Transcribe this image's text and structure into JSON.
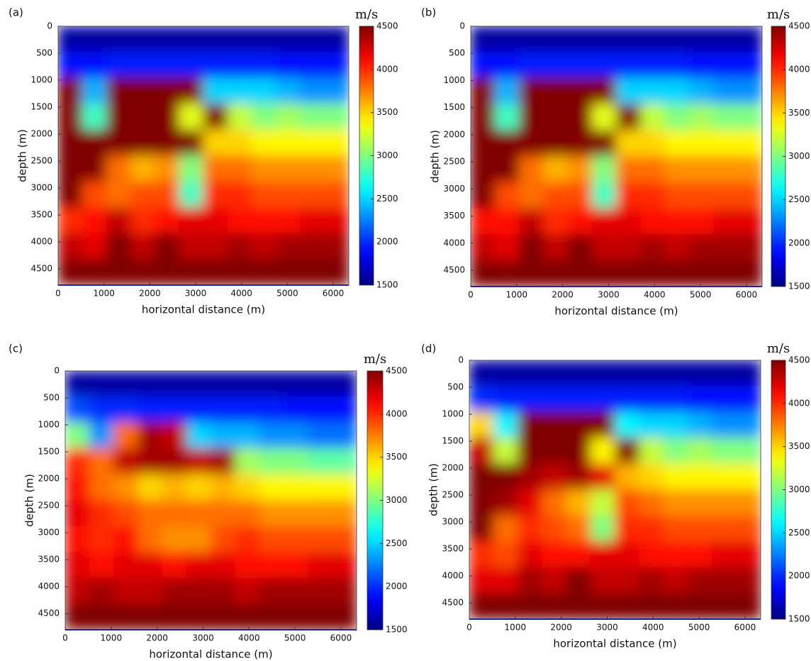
{
  "chart_data": [
    {
      "type": "heatmap",
      "panel_label": "(a)",
      "x_label": "horizontal distance (m)",
      "y_label": "depth (m)",
      "colorbar_label": "m/s",
      "colormap": "jet",
      "xlim": [
        0,
        6340
      ],
      "ylim": [
        0,
        4800
      ],
      "y_inverted": true,
      "clim": [
        1500,
        4500
      ],
      "xticks": [
        0,
        1000,
        2000,
        3000,
        4000,
        5000,
        6000
      ],
      "yticks": [
        0,
        500,
        1000,
        1500,
        2000,
        2500,
        3000,
        3500,
        4000,
        4500
      ],
      "cticks": [
        1500,
        2000,
        2500,
        3000,
        3500,
        4000,
        4500
      ],
      "z": [
        [
          1600,
          1600,
          1600,
          1600,
          1600,
          1600,
          1600,
          1600,
          1600,
          1600,
          1600,
          1600
        ],
        [
          1900,
          1900,
          1950,
          1950,
          1950,
          1950,
          1950,
          1950,
          1950,
          1900,
          1900,
          1900
        ],
        [
          4500,
          2400,
          4500,
          4500,
          4500,
          4500,
          2500,
          2500,
          2500,
          2400,
          2300,
          2300
        ],
        [
          4500,
          2800,
          4500,
          4500,
          4500,
          3300,
          4500,
          3200,
          3000,
          3100,
          3000,
          3000
        ],
        [
          4500,
          4500,
          4500,
          4500,
          4500,
          4500,
          3500,
          3500,
          3400,
          3400,
          3400,
          3400
        ],
        [
          4500,
          4500,
          3800,
          3600,
          3700,
          3000,
          3800,
          3800,
          3700,
          3700,
          3700,
          3700
        ],
        [
          4500,
          3900,
          3800,
          3900,
          3900,
          2800,
          4000,
          4000,
          3900,
          3900,
          3900,
          3900
        ],
        [
          4000,
          4100,
          4300,
          4000,
          4100,
          4200,
          4200,
          4100,
          4100,
          4100,
          4200,
          4200
        ],
        [
          4300,
          4200,
          4500,
          4300,
          4500,
          4300,
          4300,
          4400,
          4300,
          4400,
          4400,
          4400
        ],
        [
          4500,
          4500,
          4500,
          4500,
          4500,
          4500,
          4500,
          4500,
          4500,
          4500,
          4500,
          4500
        ]
      ]
    },
    {
      "type": "heatmap",
      "panel_label": "(b)",
      "x_label": "horizontal distance (m)",
      "y_label": "depth (m)",
      "colorbar_label": "m/s",
      "colormap": "jet",
      "xlim": [
        0,
        6340
      ],
      "ylim": [
        0,
        4800
      ],
      "y_inverted": true,
      "clim": [
        1500,
        4500
      ],
      "xticks": [
        0,
        1000,
        2000,
        3000,
        4000,
        5000,
        6000
      ],
      "yticks": [
        0,
        500,
        1000,
        1500,
        2000,
        2500,
        3000,
        3500,
        4000,
        4500
      ],
      "cticks": [
        1500,
        2000,
        2500,
        3000,
        3500,
        4000,
        4500
      ],
      "z": [
        [
          1600,
          1600,
          1600,
          1600,
          1600,
          1600,
          1600,
          1600,
          1600,
          1600,
          1600,
          1600
        ],
        [
          1900,
          1900,
          1950,
          1950,
          1950,
          1950,
          1950,
          1950,
          1950,
          1900,
          1900,
          1900
        ],
        [
          4500,
          2400,
          4500,
          4500,
          4500,
          4500,
          2500,
          2500,
          2500,
          2400,
          2300,
          2300
        ],
        [
          4500,
          2800,
          4500,
          4500,
          4500,
          3300,
          4500,
          3200,
          3000,
          3100,
          3000,
          3000
        ],
        [
          4500,
          4500,
          4500,
          4500,
          4500,
          4500,
          3500,
          3500,
          3400,
          3400,
          3400,
          3400
        ],
        [
          4500,
          4500,
          3800,
          3600,
          3700,
          3000,
          3800,
          3800,
          3700,
          3700,
          3700,
          3700
        ],
        [
          4500,
          3900,
          3800,
          3900,
          3900,
          2800,
          4000,
          4000,
          3900,
          3900,
          3900,
          3900
        ],
        [
          4100,
          4100,
          4300,
          4000,
          4100,
          4200,
          4200,
          4100,
          4100,
          4100,
          4200,
          4200
        ],
        [
          4300,
          4200,
          4500,
          4300,
          4500,
          4300,
          4300,
          4400,
          4300,
          4400,
          4400,
          4400
        ],
        [
          4500,
          4500,
          4500,
          4500,
          4500,
          4500,
          4500,
          4500,
          4500,
          4500,
          4500,
          4500
        ]
      ]
    },
    {
      "type": "heatmap",
      "panel_label": "(c)",
      "x_label": "horizontal distance (m)",
      "y_label": "depth (m)",
      "colorbar_label": "m/s",
      "colormap": "jet",
      "xlim": [
        0,
        6340
      ],
      "ylim": [
        0,
        4800
      ],
      "y_inverted": true,
      "clim": [
        1500,
        4500
      ],
      "xticks": [
        0,
        1000,
        2000,
        3000,
        4000,
        5000,
        6000
      ],
      "yticks": [
        0,
        500,
        1000,
        1500,
        2000,
        2500,
        3000,
        3500,
        4000,
        4500
      ],
      "cticks": [
        1500,
        2000,
        2500,
        3000,
        3500,
        4000,
        4500
      ],
      "z": [
        [
          1600,
          1600,
          1600,
          1600,
          1600,
          1600,
          1600,
          1600,
          1600,
          1600,
          1600,
          1600
        ],
        [
          2100,
          2000,
          2000,
          1950,
          1950,
          1950,
          1950,
          1950,
          1950,
          1900,
          1900,
          1900
        ],
        [
          3000,
          2300,
          3800,
          4400,
          4300,
          2500,
          2400,
          2400,
          2300,
          2300,
          2200,
          2200
        ],
        [
          4000,
          3800,
          4300,
          4400,
          4400,
          4300,
          4400,
          3100,
          3000,
          3000,
          2900,
          2900
        ],
        [
          4100,
          3800,
          3700,
          3500,
          3600,
          3500,
          3600,
          3500,
          3400,
          3400,
          3400,
          3400
        ],
        [
          4200,
          4000,
          3900,
          3800,
          3800,
          3800,
          3800,
          3800,
          3700,
          3700,
          3700,
          3700
        ],
        [
          4100,
          4000,
          4100,
          3800,
          3700,
          3700,
          3900,
          4000,
          3900,
          3900,
          3900,
          3900
        ],
        [
          4200,
          4100,
          4200,
          4200,
          4100,
          4200,
          4200,
          4100,
          4100,
          4100,
          4200,
          4200
        ],
        [
          4300,
          4400,
          4300,
          4300,
          4400,
          4400,
          4400,
          4300,
          4400,
          4400,
          4400,
          4400
        ],
        [
          4500,
          4500,
          4500,
          4500,
          4500,
          4500,
          4500,
          4500,
          4500,
          4500,
          4500,
          4500
        ]
      ]
    },
    {
      "type": "heatmap",
      "panel_label": "(d)",
      "x_label": "horizontal distance (m)",
      "y_label": "depth (m)",
      "colorbar_label": "m/s",
      "colormap": "jet",
      "xlim": [
        0,
        6340
      ],
      "ylim": [
        0,
        4800
      ],
      "y_inverted": true,
      "clim": [
        1500,
        4500
      ],
      "xticks": [
        0,
        1000,
        2000,
        3000,
        4000,
        5000,
        6000
      ],
      "yticks": [
        0,
        500,
        1000,
        1500,
        2000,
        2500,
        3000,
        3500,
        4000,
        4500
      ],
      "cticks": [
        1500,
        2000,
        2500,
        3000,
        3500,
        4000,
        4500
      ],
      "z": [
        [
          1600,
          1600,
          1600,
          1600,
          1600,
          1600,
          1600,
          1600,
          1600,
          1600,
          1600,
          1600
        ],
        [
          2000,
          1950,
          1950,
          1950,
          1950,
          1950,
          1950,
          1950,
          1950,
          1900,
          1900,
          1900
        ],
        [
          3500,
          2600,
          4500,
          4500,
          4500,
          4500,
          2600,
          2500,
          2500,
          2400,
          2300,
          2300
        ],
        [
          4300,
          3200,
          4500,
          4500,
          4500,
          3400,
          4500,
          3200,
          3000,
          3100,
          3000,
          3000
        ],
        [
          4500,
          4500,
          4400,
          4300,
          4400,
          4200,
          3600,
          3500,
          3400,
          3400,
          3400,
          3400
        ],
        [
          4500,
          4400,
          4200,
          3800,
          3600,
          3200,
          3900,
          3800,
          3700,
          3700,
          3700,
          3700
        ],
        [
          4500,
          3800,
          4000,
          3900,
          3800,
          3000,
          4000,
          4000,
          3900,
          3900,
          3900,
          3900
        ],
        [
          4000,
          3900,
          4200,
          4100,
          4100,
          4200,
          4200,
          4100,
          4100,
          4100,
          4200,
          4200
        ],
        [
          4200,
          4200,
          4400,
          4300,
          4500,
          4300,
          4300,
          4400,
          4300,
          4400,
          4400,
          4400
        ],
        [
          4500,
          4500,
          4500,
          4500,
          4500,
          4500,
          4500,
          4500,
          4500,
          4500,
          4500,
          4500
        ]
      ]
    }
  ]
}
